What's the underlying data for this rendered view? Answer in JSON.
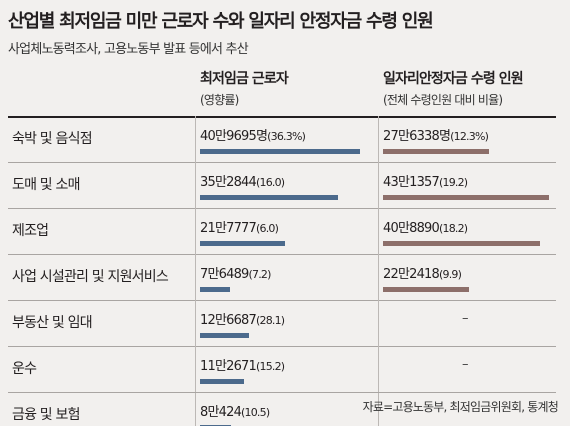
{
  "header": {
    "title": "산업별 최저임금 미만 근로자 수와 일자리 안정자금 수령 인원",
    "subtitle": "사업체노동력조사, 고용노동부 발표 등에서 추산"
  },
  "columns": {
    "a": {
      "title": "최저임금 근로자",
      "subtitle": "(영향률)"
    },
    "b": {
      "title": "일자리안정자금 수령 인원",
      "subtitle": "(전체 수령인원 대비 비율)"
    }
  },
  "rows": [
    {
      "label": "숙박 및 음식점",
      "a_text": "40만9695명",
      "a_pct": "(36.3%)",
      "b_text": "27만6338명",
      "b_pct": "(12.3%)"
    },
    {
      "label": "도매 및 소매",
      "a_text": "35만2844",
      "a_pct": "(16.0)",
      "b_text": "43만1357",
      "b_pct": "(19.2)"
    },
    {
      "label": "제조업",
      "a_text": "21만7777",
      "a_pct": "(6.0)",
      "b_text": "40만8890",
      "b_pct": "(18.2)"
    },
    {
      "label": "사업 시설관리 및 지원서비스",
      "a_text": "7만6489",
      "a_pct": "(7.2)",
      "b_text": "22만2418",
      "b_pct": "(9.9)"
    },
    {
      "label": "부동산 및 임대",
      "a_text": "12만6687",
      "a_pct": "(28.1)",
      "b_text": "–",
      "b_pct": ""
    },
    {
      "label": "운수",
      "a_text": "11만2671",
      "a_pct": "(15.2)",
      "b_text": "–",
      "b_pct": ""
    },
    {
      "label": "금융 및 보험",
      "a_text": "8만424",
      "a_pct": "(10.5)",
      "b_text": "–",
      "b_pct": ""
    }
  ],
  "source": "자료=고용노동부, 최저임금위원회, 통계청",
  "colors": {
    "bar_a": "#4c6a8c",
    "bar_b": "#8d6f6a",
    "background": "#f2f0ee"
  },
  "chart_data": {
    "type": "bar",
    "categories": [
      "숙박 및 음식점",
      "도매 및 소매",
      "제조업",
      "사업 시설관리 및 지원서비스",
      "부동산 및 임대",
      "운수",
      "금융 및 보험"
    ],
    "series": [
      {
        "name": "최저임금 근로자",
        "values": [
          409695,
          352844,
          217777,
          76489,
          126687,
          112671,
          80424
        ],
        "percent": [
          36.3,
          16.0,
          6.0,
          7.2,
          28.1,
          15.2,
          10.5
        ]
      },
      {
        "name": "일자리안정자금 수령 인원",
        "values": [
          276338,
          431357,
          408890,
          222418,
          null,
          null,
          null
        ],
        "percent": [
          12.3,
          19.2,
          18.2,
          9.9,
          null,
          null,
          null
        ]
      }
    ],
    "title": "산업별 최저임금 미만 근로자 수와 일자리 안정자금 수령 인원",
    "subtitle": "사업체노동력조사, 고용노동부 발표 등에서 추산",
    "legend": "column-headers"
  }
}
